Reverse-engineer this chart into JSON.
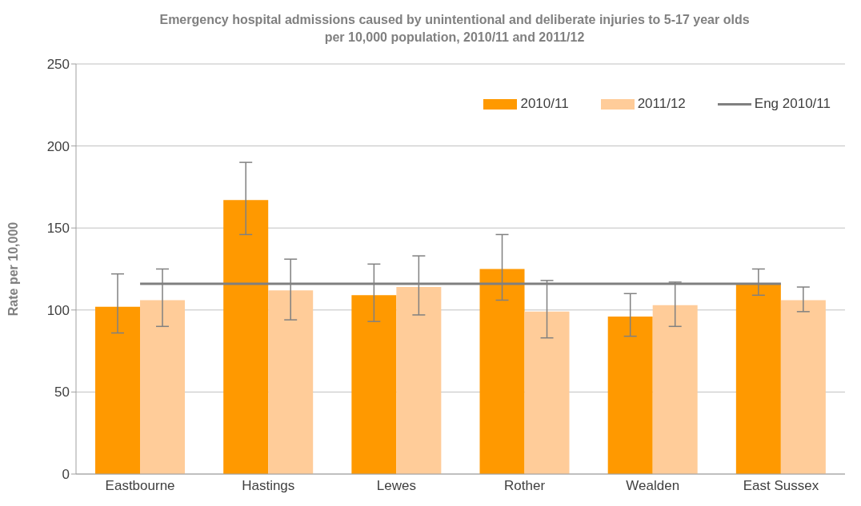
{
  "chart_data": {
    "type": "bar",
    "title": "Emergency hospital admissions caused by unintentional and deliberate injuries to 5-17 year olds per 10,000 population, 2010/11 and 2011/12",
    "ylabel": "Rate per 10,000",
    "categories": [
      "Eastbourne",
      "Hastings",
      "Lewes",
      "Rother",
      "Wealden",
      "East Sussex"
    ],
    "series": [
      {
        "name": "2010/11",
        "color": "#ff9900",
        "values": [
          102,
          167,
          109,
          125,
          96,
          116
        ],
        "errors": [
          [
            86,
            122
          ],
          [
            146,
            190
          ],
          [
            93,
            128
          ],
          [
            106,
            146
          ],
          [
            84,
            110
          ],
          [
            109,
            125
          ]
        ]
      },
      {
        "name": "2011/12",
        "color": "#ffcc99",
        "values": [
          106,
          112,
          114,
          99,
          103,
          106
        ],
        "errors": [
          [
            90,
            125
          ],
          [
            94,
            131
          ],
          [
            97,
            133
          ],
          [
            83,
            118
          ],
          [
            90,
            117
          ],
          [
            99,
            114
          ]
        ]
      }
    ],
    "ref_lines": [
      {
        "axis": "y",
        "value": 116,
        "label": "Eng 2010/11",
        "color": "#808080",
        "line_style": "solid"
      }
    ],
    "ylim": [
      0,
      250
    ],
    "yticks": [
      0,
      50,
      100,
      150,
      200,
      250
    ],
    "grid": "y",
    "legend": "top right"
  }
}
